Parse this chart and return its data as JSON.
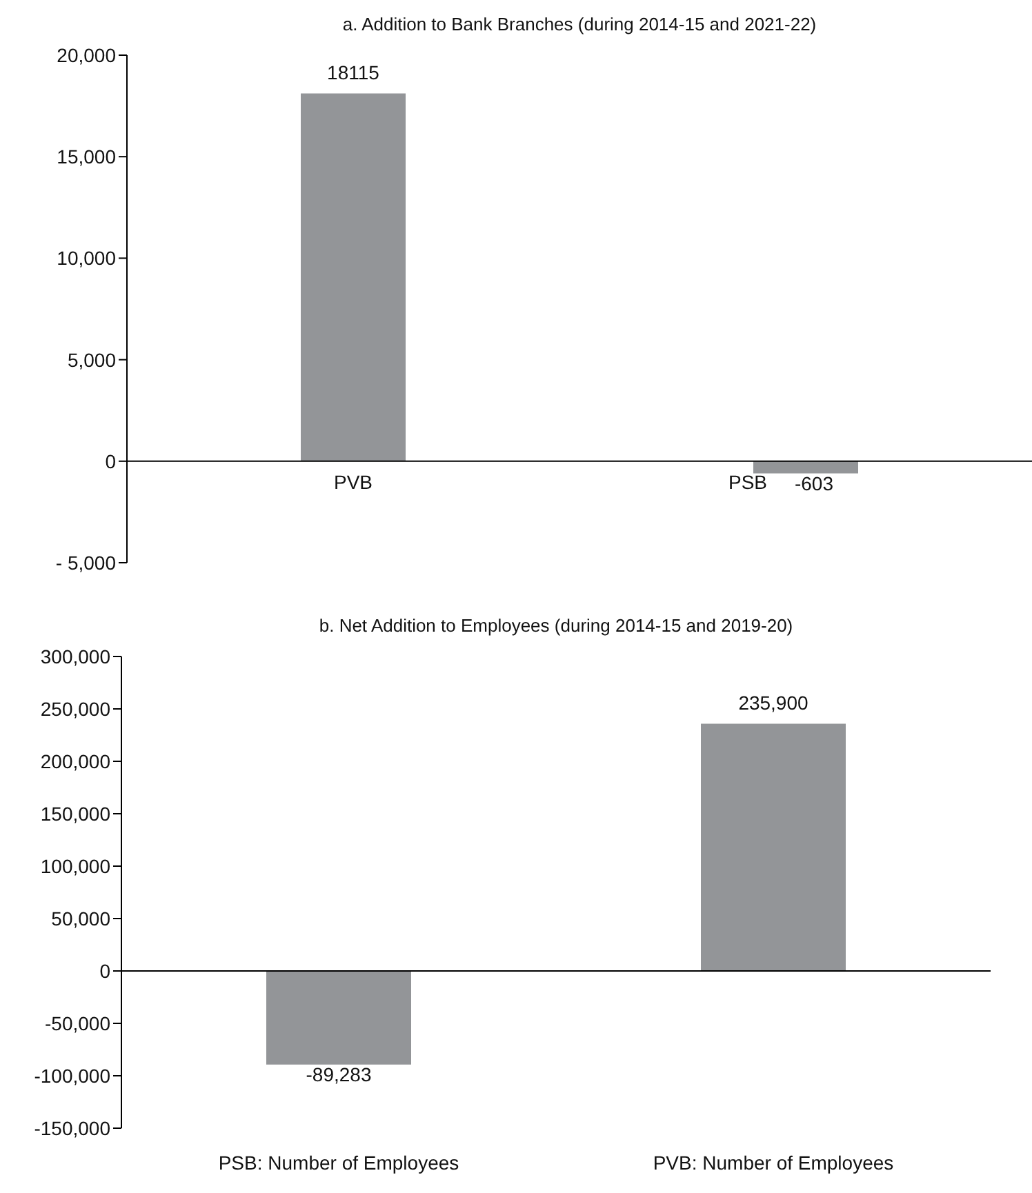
{
  "chart_data": [
    {
      "type": "bar",
      "title": "a. Addition to Bank Branches (during 2014-15 and 2021-22)",
      "categories": [
        "PVB",
        "PSB"
      ],
      "values": [
        18115,
        -603
      ],
      "color": "#939598",
      "data_labels": true,
      "ylim": [
        -5000,
        20000
      ],
      "yticks": [
        {
          "value": -5000,
          "label": "- 5,000"
        },
        0,
        {
          "value": 5000,
          "label": "5,000"
        },
        {
          "value": 10000,
          "label": "10,000"
        },
        {
          "value": 15000,
          "label": "15,000"
        },
        {
          "value": 20000,
          "label": "20,000"
        }
      ],
      "legend": false
    },
    {
      "type": "bar",
      "title": "b. Net Addition to Employees (during 2014-15  and 2019-20)",
      "categories": [
        "PSB: Number of Employees",
        "PVB: Number of Employees"
      ],
      "values": [
        -89283,
        235900
      ],
      "value_labels": [
        "-89,283",
        "235,900"
      ],
      "color": "#939598",
      "ylim": [
        -150000,
        300000
      ],
      "yticks": [
        {
          "value": -150000,
          "label": "-150,000"
        },
        {
          "value": -100000,
          "label": "-100,000"
        },
        {
          "value": -50000,
          "label": "-50,000"
        },
        0,
        {
          "value": 50000,
          "label": "50,000"
        },
        {
          "value": 100000,
          "label": "100,000"
        },
        {
          "value": 150000,
          "label": "150,000"
        },
        {
          "value": 200000,
          "label": "200,000"
        },
        {
          "value": 250000,
          "label": "250,000"
        },
        {
          "value": 300000,
          "label": "300,000"
        }
      ],
      "legend": false
    }
  ]
}
